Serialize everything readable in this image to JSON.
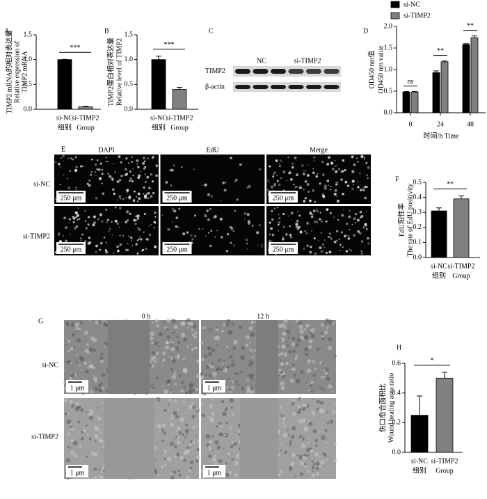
{
  "chart_data": [
    {
      "type": "bar",
      "label": "A",
      "ylabel": [
        "TIMP2 mRNA的相对表达量",
        "Relative expression of",
        "TIMP2 mRNA"
      ],
      "categories": [
        "si-NC",
        "si-TIMP2"
      ],
      "xlabel": [
        "组别",
        "Group"
      ],
      "values": [
        1.0,
        0.05
      ],
      "errors": [
        0.005,
        0.01
      ],
      "colors": [
        "#000000",
        "#808080"
      ],
      "ylim": [
        0,
        1.5
      ],
      "yticks": [
        {
          "value": 0,
          "label": "0.0"
        },
        0.5,
        {
          "value": 1,
          "label": "1.0"
        },
        1.5
      ],
      "significance": [
        "***"
      ]
    },
    {
      "type": "bar",
      "label": "B",
      "ylabel": [
        "TIMP2蛋白相对表达量",
        "Relative level of TIMP2"
      ],
      "categories": [
        "si-NC",
        "si-TIMP2"
      ],
      "xlabel": [
        "组别",
        "Group"
      ],
      "values": [
        1.0,
        0.4
      ],
      "errors": [
        0.07,
        0.04
      ],
      "colors": [
        "#000000",
        "#808080"
      ],
      "ylim": [
        0,
        1.5
      ],
      "yticks": [
        {
          "value": 0,
          "label": "0.0"
        },
        0.5,
        {
          "value": 1,
          "label": "1.0"
        },
        1.5
      ],
      "significance": [
        "***"
      ]
    },
    {
      "type": "grouped-bar",
      "label": "D",
      "ylabel": [
        "OD450 nm值",
        "OD450 nm value"
      ],
      "categories": [
        "0",
        "24",
        "48"
      ],
      "xlabel": [
        "时间/h Time"
      ],
      "series": [
        {
          "name": "si-NC",
          "color": "#000000",
          "values": [
            0.48,
            0.93,
            1.58
          ],
          "errors": [
            0.01,
            0.04,
            0.02
          ]
        },
        {
          "name": "si-TIMP2",
          "color": "#808080",
          "values": [
            0.48,
            1.18,
            1.74
          ],
          "errors": [
            0.01,
            0.02,
            0.04
          ]
        }
      ],
      "ylim": [
        0,
        2.0
      ],
      "yticks": [
        {
          "value": 0,
          "label": "0.0"
        },
        0.5,
        {
          "value": 1,
          "label": "1.0"
        },
        1.5,
        {
          "value": 2,
          "label": "2.0"
        }
      ],
      "significance": [
        "ns",
        "**",
        "**"
      ]
    },
    {
      "type": "bar",
      "label": "F",
      "ylabel": [
        "EdU阳性率",
        "The rate of EdU positivity"
      ],
      "categories": [
        "si-NC",
        "si-TIMP2"
      ],
      "xlabel": [
        "组别",
        "Group"
      ],
      "values": [
        0.31,
        0.39
      ],
      "errors": [
        0.02,
        0.02
      ],
      "colors": [
        "#000000",
        "#808080"
      ],
      "ylim": [
        0,
        0.5
      ],
      "yticks": [
        {
          "value": 0,
          "label": "0.0"
        },
        0.1,
        0.2,
        0.3,
        0.4,
        0.5
      ],
      "significance": [
        "**"
      ]
    },
    {
      "type": "bar",
      "label": "H",
      "ylabel": [
        "伤口愈合面积比",
        "Wound healing area ratio"
      ],
      "categories": [
        "si-NC",
        "si-TIMP2"
      ],
      "xlabel": [
        "组别",
        "Group"
      ],
      "values": [
        0.25,
        0.5
      ],
      "errors": [
        0.13,
        0.04
      ],
      "colors": [
        "#000000",
        "#808080"
      ],
      "ylim": [
        0,
        0.6
      ],
      "yticks": [
        {
          "value": 0,
          "label": "0.0"
        },
        0.2,
        0.4,
        0.6
      ],
      "significance": [
        "*"
      ]
    }
  ],
  "blot": {
    "label": "C",
    "lanes": [
      "NC",
      "si-TIMP2"
    ],
    "rows": [
      "TIMP2",
      "β-actin"
    ]
  },
  "edu": {
    "label": "E",
    "columns": [
      "DAPI",
      "EdU",
      "Merge"
    ],
    "rows": [
      "si-NC",
      "si-TIMP2"
    ],
    "scale_bar": "250 μm"
  },
  "wound": {
    "label": "G",
    "columns": [
      "0 h",
      "12 h"
    ],
    "rows": [
      "si-NC",
      "si-TIMP2"
    ],
    "scale_bar": "1 μm"
  }
}
